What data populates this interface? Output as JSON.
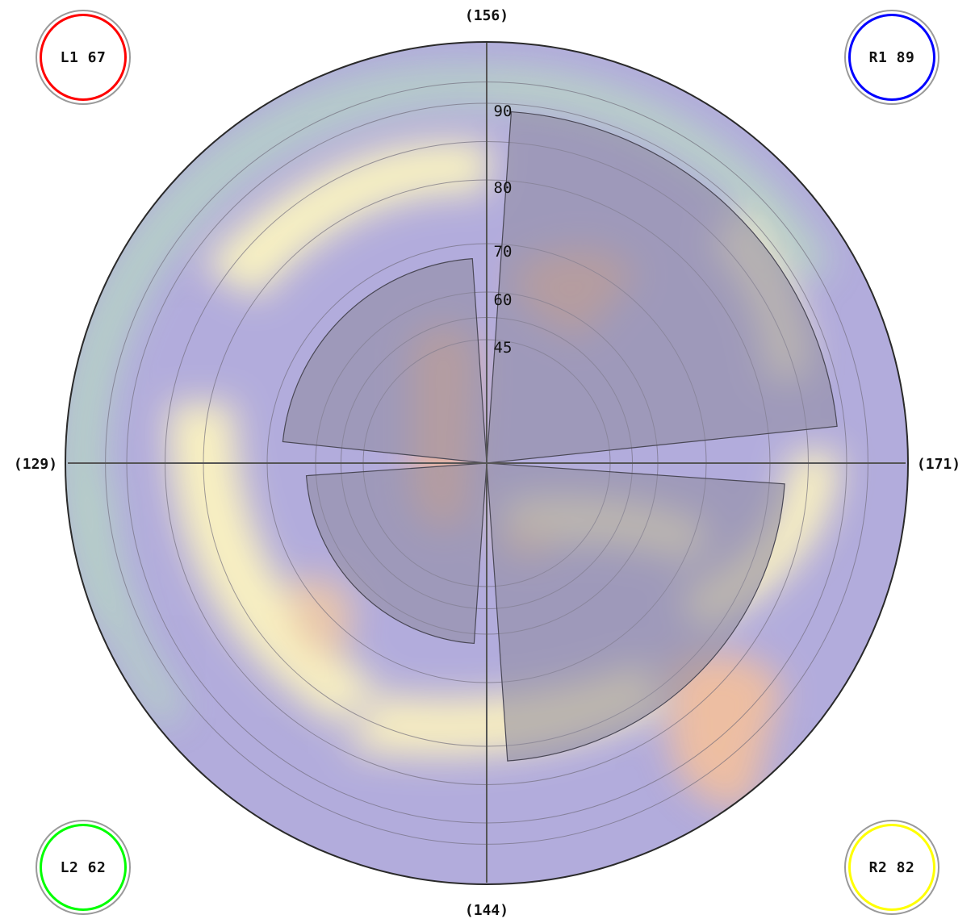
{
  "chart_data": {
    "type": "polar-bar",
    "axis_labels": {
      "top": "(156)",
      "right": "(171)",
      "bottom": "(144)",
      "left": "(129)"
    },
    "radial_ticks": [
      45,
      60,
      70,
      80,
      90
    ],
    "radial_scale": "nonlinear",
    "sectors": [
      {
        "name": "R1",
        "value": 89,
        "quadrant": "top-right",
        "color": "#0000ff"
      },
      {
        "name": "L1",
        "value": 67,
        "quadrant": "top-left",
        "color": "#ff0000"
      },
      {
        "name": "L2",
        "value": 62,
        "quadrant": "bottom-left",
        "color": "#00ff00"
      },
      {
        "name": "R2",
        "value": 82,
        "quadrant": "bottom-right",
        "color": "#ffff00"
      }
    ],
    "background": "color-gradient heat map",
    "grid": true
  },
  "badges": {
    "l1": {
      "text": "L1 67",
      "color": "#ff0000"
    },
    "r1": {
      "text": "R1 89",
      "color": "#0000ff"
    },
    "l2": {
      "text": "L2 62",
      "color": "#00ff00"
    },
    "r2": {
      "text": "R2 82",
      "color": "#ffff00"
    }
  }
}
